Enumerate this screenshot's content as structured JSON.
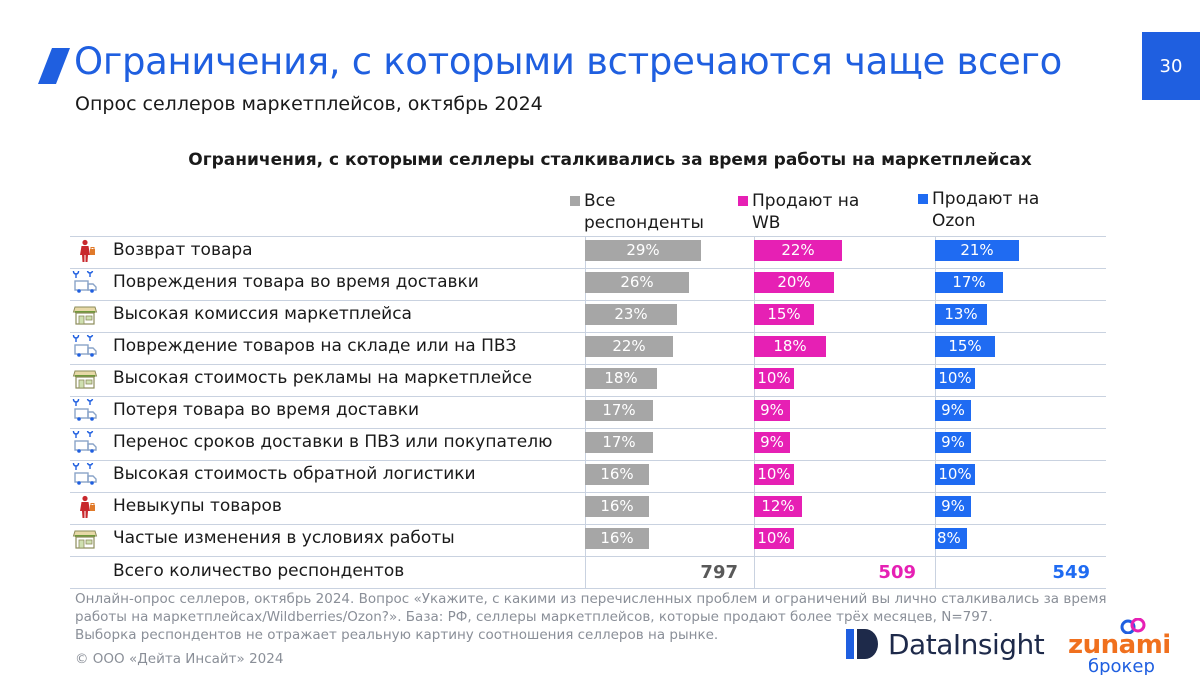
{
  "header": {
    "title": "Ограничения, с которыми встречаются чаще всего",
    "subtitle": "Опрос селлеров маркетплейсов, октябрь 2024",
    "page_number": "30"
  },
  "colors": {
    "accent": "#1f5fe0",
    "all": "#a6a6a6",
    "wb": "#e620b4",
    "ozon": "#1f6bf2",
    "grid": "#c9d2e0"
  },
  "chart_data": {
    "type": "bar",
    "title": "Ограничения, с которыми селлеры сталкивались за время работы на маркетплейсах",
    "unit": "%",
    "categories": [
      "Возврат товара",
      "Повреждения товара во время доставки",
      "Высокая комиссия маркетплейса",
      "Повреждение товаров на складе или на ПВЗ",
      "Высокая стоимость рекламы на маркетплейсе",
      "Потеря товара во время доставки",
      "Перенос сроков доставки в ПВЗ или покупателю",
      "Высокая стоимость обратной логистики",
      "Невыкупы товаров",
      "Частые изменения в условиях работы"
    ],
    "category_icons": [
      "person-bag-icon",
      "delivery-truck-icon",
      "marketplace-store-icon",
      "delivery-truck-icon",
      "marketplace-store-icon",
      "delivery-truck-icon",
      "delivery-truck-icon",
      "delivery-truck-icon",
      "person-bag-icon",
      "marketplace-store-icon"
    ],
    "series": [
      {
        "name": "Все респонденты",
        "key": "all",
        "values": [
          29,
          26,
          23,
          22,
          18,
          17,
          17,
          16,
          16,
          16
        ],
        "total": "797"
      },
      {
        "name": "Продают на WB",
        "key": "wb",
        "values": [
          22,
          20,
          15,
          18,
          10,
          9,
          9,
          10,
          12,
          10
        ],
        "total": "509"
      },
      {
        "name": "Продают на Ozon",
        "key": "ozon",
        "values": [
          21,
          17,
          13,
          15,
          10,
          9,
          9,
          10,
          9,
          8
        ],
        "total": "549"
      }
    ],
    "total_label": "Всего количество респондентов",
    "xlim": [
      0,
      100
    ]
  },
  "footnote": {
    "lines": [
      "Онлайн-опрос селлеров, октябрь 2024. Вопрос «Укажите, с какими из перечисленных проблем и ограничений вы лично сталкивались за время",
      "работы на маркетплейсах/Wildberries/Ozon?». База: РФ, селлеры маркетплейсов, которые продают более трёх месяцев, N=797.",
      "Выборка респондентов не отражает реальную картину соотношения селлеров на рынке."
    ],
    "copyright": "© ООО «Дейта Инсайт» 2024"
  },
  "logos": {
    "datainsight": "DataInsight",
    "zunami": "zunami",
    "zunami_sub": "брокер"
  }
}
